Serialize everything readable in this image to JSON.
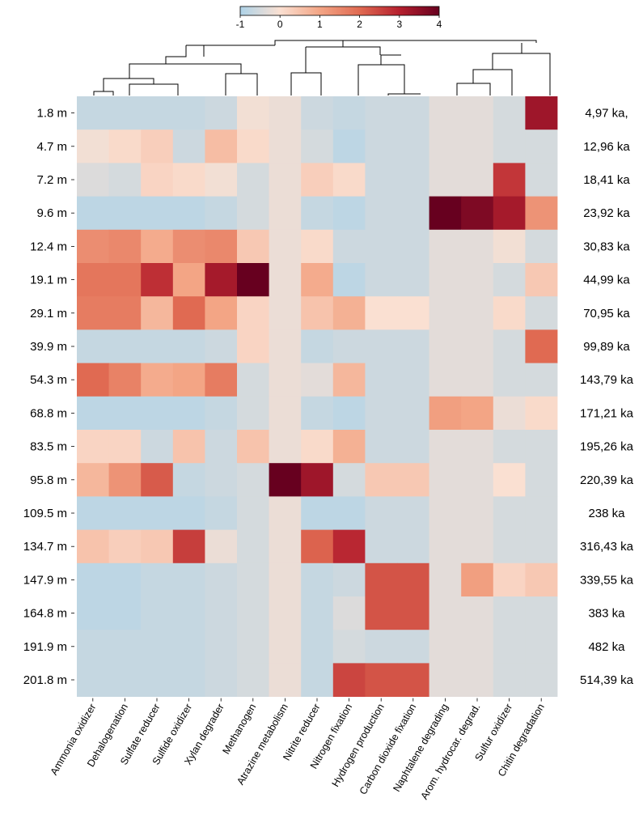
{
  "chart_data": {
    "type": "heatmap",
    "rows": [
      "1.8 m",
      "4.7 m",
      "7.2 m",
      "9.6 m",
      "12.4 m",
      "19.1 m",
      "29.1 m",
      "39.9 m",
      "54.3 m",
      "68.8 m",
      "83.5 m",
      "95.8 m",
      "109.5 m",
      "134.7 m",
      "147.9 m",
      "164.8 m",
      "191.9 m",
      "201.8 m"
    ],
    "row_labels_right": [
      "4,97 ka,",
      "12,96 ka",
      "18,41 ka",
      "23,92 ka",
      "30,83 ka",
      "44,99 ka",
      "70,95 ka",
      "99,89 ka",
      "143,79 ka",
      "171,21 ka",
      "195,26 ka",
      "220,39 ka",
      "238 ka",
      "316,43 ka",
      "339,55 ka",
      "383 ka",
      "482 ka",
      "514,39 ka"
    ],
    "columns": [
      "Ammonia oxidizer",
      "Dehalogenation",
      "Sulfate reducer",
      "Sulfide oxidizer",
      "Xylan degrader",
      "Methanogen",
      "Atrazine metabolism",
      "Nitrite reducer",
      "Nitrogen fixation",
      "Hydrogen production",
      "Carbon dioxide fixation",
      "Naphtalene degrading",
      "Arom. hydrocar. degrad.",
      "Sulfur oxidizer",
      "Chitin degradation"
    ],
    "values": [
      [
        -0.7,
        -0.7,
        -0.7,
        -0.7,
        -0.6,
        -0.1,
        -0.2,
        -0.6,
        -0.7,
        -0.6,
        -0.6,
        -0.3,
        -0.3,
        -0.5,
        3.3
      ],
      [
        -0.1,
        0.1,
        0.3,
        -0.6,
        0.6,
        0.1,
        -0.2,
        -0.5,
        -0.8,
        -0.6,
        -0.6,
        -0.3,
        -0.3,
        -0.5,
        -0.5
      ],
      [
        -0.4,
        -0.5,
        0.2,
        0.1,
        -0.1,
        -0.5,
        -0.2,
        0.3,
        0.1,
        -0.6,
        -0.6,
        -0.3,
        -0.3,
        2.7,
        -0.5
      ],
      [
        -0.8,
        -0.8,
        -0.8,
        -0.8,
        -0.7,
        -0.5,
        -0.2,
        -0.7,
        -0.8,
        -0.6,
        -0.6,
        4.0,
        3.7,
        3.2,
        1.3
      ],
      [
        1.4,
        1.5,
        0.9,
        1.4,
        1.5,
        0.4,
        -0.2,
        0.1,
        -0.6,
        -0.6,
        -0.6,
        -0.3,
        -0.3,
        -0.1,
        -0.5
      ],
      [
        1.8,
        1.8,
        2.8,
        1.0,
        3.2,
        4.0,
        -0.2,
        0.9,
        -0.8,
        -0.6,
        -0.6,
        -0.3,
        -0.3,
        -0.5,
        0.4
      ],
      [
        1.7,
        1.7,
        0.7,
        2.0,
        1.0,
        0.2,
        -0.2,
        0.5,
        0.8,
        0.0,
        0.0,
        -0.3,
        -0.3,
        0.1,
        -0.5
      ],
      [
        -0.7,
        -0.7,
        -0.7,
        -0.7,
        -0.6,
        0.2,
        -0.2,
        -0.7,
        -0.6,
        -0.6,
        -0.6,
        -0.3,
        -0.3,
        -0.5,
        2.0
      ],
      [
        2.0,
        1.6,
        0.9,
        1.0,
        1.7,
        -0.5,
        -0.2,
        -0.3,
        0.7,
        -0.6,
        -0.6,
        -0.3,
        -0.3,
        -0.5,
        -0.5
      ],
      [
        -0.8,
        -0.8,
        -0.8,
        -0.8,
        -0.7,
        -0.5,
        -0.2,
        -0.7,
        -0.8,
        -0.6,
        -0.6,
        1.1,
        1.0,
        -0.2,
        0.1
      ],
      [
        0.2,
        0.2,
        -0.6,
        0.5,
        -0.6,
        0.5,
        -0.2,
        0.1,
        0.8,
        -0.6,
        -0.6,
        -0.3,
        -0.3,
        -0.5,
        -0.5
      ],
      [
        0.7,
        1.3,
        2.2,
        -0.7,
        -0.6,
        -0.5,
        4.0,
        3.3,
        -0.5,
        0.4,
        0.4,
        -0.3,
        -0.3,
        0.0,
        -0.5
      ],
      [
        -0.8,
        -0.8,
        -0.8,
        -0.8,
        -0.7,
        -0.5,
        -0.2,
        -0.8,
        -0.8,
        -0.6,
        -0.6,
        -0.3,
        -0.3,
        -0.5,
        -0.5
      ],
      [
        0.5,
        0.3,
        0.4,
        2.6,
        -0.2,
        -0.5,
        -0.2,
        2.1,
        2.9,
        -0.6,
        -0.6,
        -0.3,
        -0.3,
        -0.5,
        -0.5
      ],
      [
        -0.8,
        -0.8,
        -0.7,
        -0.7,
        -0.6,
        -0.5,
        -0.2,
        -0.7,
        -0.6,
        2.3,
        2.3,
        -0.3,
        1.1,
        0.2,
        0.4
      ],
      [
        -0.8,
        -0.8,
        -0.7,
        -0.7,
        -0.6,
        -0.5,
        -0.2,
        -0.7,
        -0.4,
        2.3,
        2.3,
        -0.3,
        -0.3,
        -0.5,
        -0.5
      ],
      [
        -0.7,
        -0.7,
        -0.7,
        -0.7,
        -0.6,
        -0.5,
        -0.2,
        -0.7,
        -0.5,
        -0.6,
        -0.6,
        -0.3,
        -0.3,
        -0.5,
        -0.5
      ],
      [
        -0.7,
        -0.7,
        -0.7,
        -0.7,
        -0.6,
        -0.5,
        -0.2,
        -0.7,
        2.5,
        2.3,
        2.3,
        -0.3,
        -0.3,
        -0.5,
        -0.5
      ]
    ],
    "colorbar": {
      "range": [
        -1,
        4
      ],
      "tick_labels": [
        "-1",
        "0",
        "1",
        "2",
        "3",
        "4"
      ],
      "tick_values": [
        -1,
        0,
        1,
        2,
        3,
        4
      ],
      "colors": [
        "#aed3e8",
        "#fae0d2",
        "#f3a585",
        "#e06a52",
        "#b5202e",
        "#67001f"
      ],
      "stops": [
        -1,
        0,
        1,
        2,
        3,
        4
      ]
    },
    "dendrogram": "column clustering tree shown above heatmap",
    "grid": false,
    "legend": "colorbar top-center"
  }
}
